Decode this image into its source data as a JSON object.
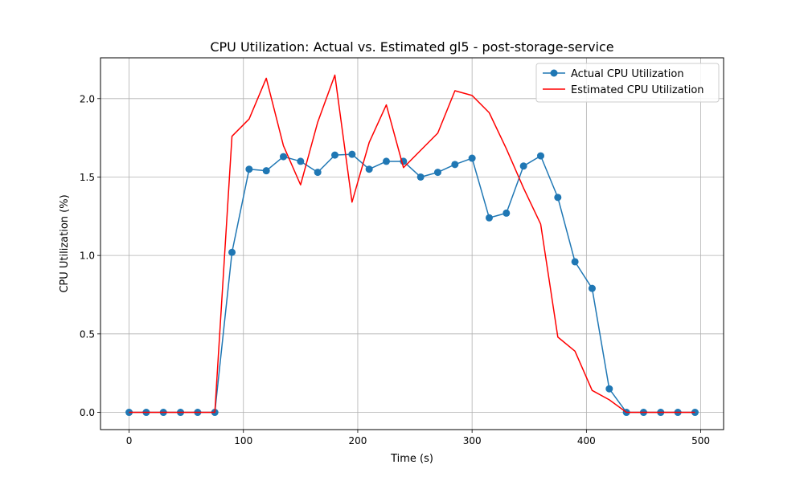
{
  "chart_data": {
    "type": "line",
    "title": "CPU Utilization: Actual vs. Estimated gl5 - post-storage-service",
    "xlabel": "Time (s)",
    "ylabel": "CPU Utilization (%)",
    "xlim": [
      -25,
      520
    ],
    "ylim": [
      -0.11,
      2.26
    ],
    "xticks": [
      0,
      100,
      200,
      300,
      400,
      500
    ],
    "xtick_labels": [
      "0",
      "100",
      "200",
      "300",
      "400",
      "500"
    ],
    "yticks": [
      0.0,
      0.5,
      1.0,
      1.5,
      2.0
    ],
    "ytick_labels": [
      "0.0",
      "0.5",
      "1.0",
      "1.5",
      "2.0"
    ],
    "grid": true,
    "legend_position": "top-right",
    "series": [
      {
        "name": "Actual CPU Utilization",
        "color": "#1f77b4",
        "marker": "circle",
        "x": [
          0,
          15,
          30,
          45,
          60,
          75,
          90,
          105,
          120,
          135,
          150,
          165,
          180,
          195,
          210,
          225,
          240,
          255,
          270,
          285,
          300,
          315,
          330,
          345,
          360,
          375,
          390,
          405,
          420,
          435,
          450,
          465,
          480,
          495
        ],
        "y": [
          0,
          0,
          0,
          0,
          0,
          0,
          1.02,
          1.55,
          1.54,
          1.63,
          1.6,
          1.53,
          1.64,
          1.645,
          1.55,
          1.6,
          1.6,
          1.5,
          1.53,
          1.58,
          1.62,
          1.24,
          1.27,
          1.57,
          1.635,
          1.37,
          0.96,
          0.79,
          0.15,
          0,
          0,
          0,
          0,
          0
        ]
      },
      {
        "name": "Estimated CPU Utilization",
        "color": "#ff0000",
        "marker": "none",
        "x": [
          0,
          15,
          30,
          45,
          60,
          75,
          90,
          105,
          120,
          135,
          150,
          165,
          180,
          195,
          210,
          225,
          240,
          255,
          270,
          285,
          300,
          315,
          330,
          345,
          360,
          375,
          390,
          405,
          420,
          435,
          450,
          465,
          480,
          495
        ],
        "y": [
          0,
          0,
          0,
          0,
          0,
          0,
          1.76,
          1.87,
          2.13,
          1.7,
          1.45,
          1.85,
          2.15,
          1.34,
          1.72,
          1.96,
          1.56,
          1.67,
          1.78,
          2.05,
          2.02,
          1.91,
          1.68,
          1.43,
          1.2,
          0.48,
          0.39,
          0.14,
          0.08,
          0,
          0,
          0,
          0,
          0
        ]
      }
    ]
  }
}
